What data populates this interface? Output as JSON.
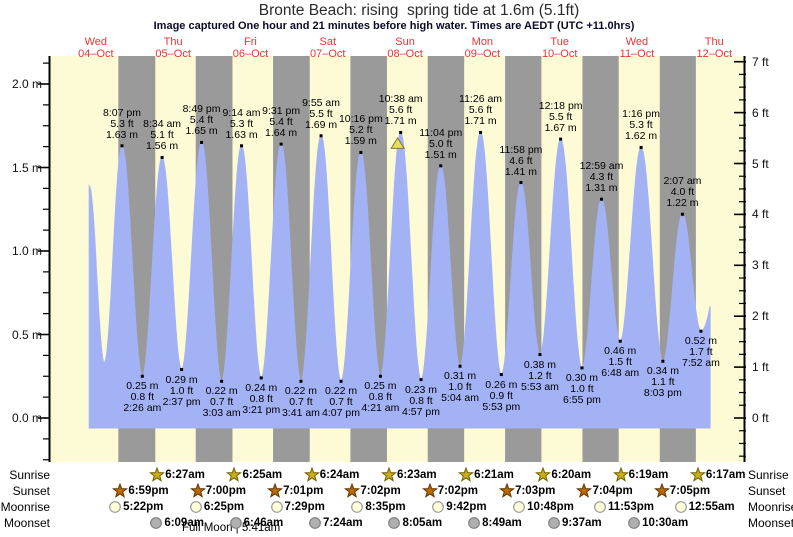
{
  "title": "Bronte Beach: rising  spring tide at 1.6m (5.1ft)",
  "subtitle": "Image captured One hour and 21 minutes before high water. Times are AEDT (UTC +11.0hrs)",
  "days": [
    {
      "name": "Wed",
      "date": "04–Oct",
      "noon_t": 12
    },
    {
      "name": "Thu",
      "date": "05–Oct",
      "noon_t": 36
    },
    {
      "name": "Fri",
      "date": "06–Oct",
      "noon_t": 60
    },
    {
      "name": "Sat",
      "date": "07–Oct",
      "noon_t": 84
    },
    {
      "name": "Sun",
      "date": "08–Oct",
      "noon_t": 108
    },
    {
      "name": "Mon",
      "date": "09–Oct",
      "noon_t": 132
    },
    {
      "name": "Tue",
      "date": "10–Oct",
      "noon_t": 156
    },
    {
      "name": "Wed",
      "date": "11–Oct",
      "noon_t": 180
    },
    {
      "name": "Thu",
      "date": "12–Oct",
      "noon_t": 204
    }
  ],
  "axes": {
    "left": {
      "labels": [
        "2.0 m",
        "1.5 m",
        "1.0 m",
        "0.5 m",
        "0.0 m"
      ],
      "values": [
        2.0,
        1.5,
        1.0,
        0.5,
        0.0
      ],
      "minor_step_m": 0.125
    },
    "right": {
      "labels": [
        "7 ft",
        "6 ft",
        "5 ft",
        "4 ft",
        "3 ft",
        "2 ft",
        "1 ft",
        "0 ft"
      ],
      "values": [
        7,
        6,
        5,
        4,
        3,
        2,
        1,
        0
      ],
      "minor_step_ft": 0.25
    }
  },
  "chart_data": {
    "type": "area",
    "x_unit": "hours_since_wed_04_oct_00:00",
    "y_unit": "m",
    "ylim": [
      0,
      2.16
    ],
    "highs": [
      {
        "time": "8:07 pm",
        "ft": "5.3 ft",
        "m": "1.63 m",
        "t": 20.12,
        "h": 1.63
      },
      {
        "time": "8:34 am",
        "ft": "5.1 ft",
        "m": "1.56 m",
        "t": 32.57,
        "h": 1.56
      },
      {
        "time": "8:49 pm",
        "ft": "5.4 ft",
        "m": "1.65 m",
        "t": 44.82,
        "h": 1.65
      },
      {
        "time": "9:14 am",
        "ft": "5.3 ft",
        "m": "1.63 m",
        "t": 57.23,
        "h": 1.63
      },
      {
        "time": "9:31 pm",
        "ft": "5.4 ft",
        "m": "1.64 m",
        "t": 69.52,
        "h": 1.64
      },
      {
        "time": "9:55 am",
        "ft": "5.5 ft",
        "m": "1.69 m",
        "t": 81.92,
        "h": 1.69
      },
      {
        "time": "10:16 pm",
        "ft": "5.2 ft",
        "m": "1.59 m",
        "t": 94.27,
        "h": 1.59
      },
      {
        "time": "10:38 am",
        "ft": "5.6 ft",
        "m": "1.71 m",
        "t": 106.63,
        "h": 1.71
      },
      {
        "time": "11:04 pm",
        "ft": "5.0 ft",
        "m": "1.51 m",
        "t": 119.07,
        "h": 1.51
      },
      {
        "time": "11:26 am",
        "ft": "5.6 ft",
        "m": "1.71 m",
        "t": 131.43,
        "h": 1.71
      },
      {
        "time": "11:58 pm",
        "ft": "4.6 ft",
        "m": "1.41 m",
        "t": 143.97,
        "h": 1.41
      },
      {
        "time": "12:18 pm",
        "ft": "5.5 ft",
        "m": "1.67 m",
        "t": 156.3,
        "h": 1.67
      },
      {
        "time": "12:59 am",
        "ft": "4.3 ft",
        "m": "1.31 m",
        "t": 168.98,
        "h": 1.31
      },
      {
        "time": "1:16 pm",
        "ft": "5.3 ft",
        "m": "1.62 m",
        "t": 181.27,
        "h": 1.62
      },
      {
        "time": "2:07 am",
        "ft": "4.0 ft",
        "m": "1.22 m",
        "t": 194.12,
        "h": 1.22
      }
    ],
    "lows": [
      {
        "m": "0.25 m",
        "ft": "0.8 ft",
        "time": "2:26 am",
        "t": 26.43,
        "h": 0.25
      },
      {
        "m": "0.29 m",
        "ft": "1.0 ft",
        "time": "2:37 pm",
        "t": 38.62,
        "h": 0.29
      },
      {
        "m": "0.22 m",
        "ft": "0.7 ft",
        "time": "3:03 am",
        "t": 51.05,
        "h": 0.22
      },
      {
        "m": "0.24 m",
        "ft": "0.8 ft",
        "time": "3:21 pm",
        "t": 63.35,
        "h": 0.24
      },
      {
        "m": "0.22 m",
        "ft": "0.7 ft",
        "time": "3:41 am",
        "t": 75.68,
        "h": 0.22
      },
      {
        "m": "0.22 m",
        "ft": "0.7 ft",
        "time": "4:07 pm",
        "t": 88.12,
        "h": 0.22
      },
      {
        "m": "0.25 m",
        "ft": "0.8 ft",
        "time": "4:21 am",
        "t": 100.35,
        "h": 0.25
      },
      {
        "m": "0.23 m",
        "ft": "0.8 ft",
        "time": "4:57 pm",
        "t": 112.95,
        "h": 0.23
      },
      {
        "m": "0.31 m",
        "ft": "1.0 ft",
        "time": "5:04 am",
        "t": 125.07,
        "h": 0.31
      },
      {
        "m": "0.26 m",
        "ft": "0.9 ft",
        "time": "5:53 pm",
        "t": 137.88,
        "h": 0.26
      },
      {
        "m": "0.38 m",
        "ft": "1.2 ft",
        "time": "5:53 am",
        "t": 149.88,
        "h": 0.38
      },
      {
        "m": "0.30 m",
        "ft": "1.0 ft",
        "time": "6:55 pm",
        "t": 162.92,
        "h": 0.3
      },
      {
        "m": "0.46 m",
        "ft": "1.5 ft",
        "time": "6:48 am",
        "t": 174.8,
        "h": 0.46
      },
      {
        "m": "0.34 m",
        "ft": "1.1 ft",
        "time": "8:03 pm",
        "t": 188.05,
        "h": 0.34
      },
      {
        "m": "0.52 m",
        "ft": "1.7 ft",
        "time": "7:52 am",
        "t": 199.87,
        "h": 0.52
      }
    ],
    "edge_extremes": [
      {
        "t": 9.95,
        "h": 1.39
      },
      {
        "t": 14.6,
        "h": 0.33
      },
      {
        "t": 211.0,
        "h": 1.5
      }
    ],
    "clip_t": [
      9.95,
      202.7
    ],
    "now_marker": {
      "t": 106.63,
      "h": 1.71
    },
    "night_bands": [
      [
        18.98,
        30.45
      ],
      [
        43.0,
        54.42
      ],
      [
        67.02,
        78.4
      ],
      [
        91.03,
        102.38
      ],
      [
        115.03,
        126.35
      ],
      [
        139.05,
        150.33
      ],
      [
        163.07,
        174.32
      ],
      [
        187.08,
        198.28
      ]
    ]
  },
  "astro": {
    "rows": [
      {
        "label": "Sunrise",
        "icon": "sunrise-star",
        "events": [
          {
            "time": "6:27am",
            "t": 30.45
          },
          {
            "time": "6:25am",
            "t": 54.42
          },
          {
            "time": "6:24am",
            "t": 78.4
          },
          {
            "time": "6:23am",
            "t": 102.38
          },
          {
            "time": "6:21am",
            "t": 126.35
          },
          {
            "time": "6:20am",
            "t": 150.33
          },
          {
            "time": "6:19am",
            "t": 174.32
          },
          {
            "time": "6:17am",
            "t": 198.28
          }
        ]
      },
      {
        "label": "Sunset",
        "icon": "sunset-star",
        "events": [
          {
            "time": "6:59pm",
            "t": 18.98
          },
          {
            "time": "7:00pm",
            "t": 43.0
          },
          {
            "time": "7:01pm",
            "t": 67.02
          },
          {
            "time": "7:02pm",
            "t": 91.03
          },
          {
            "time": "7:02pm",
            "t": 115.03
          },
          {
            "time": "7:03pm",
            "t": 139.05
          },
          {
            "time": "7:04pm",
            "t": 163.07
          },
          {
            "time": "7:05pm",
            "t": 187.08
          }
        ]
      },
      {
        "label": "Moonrise",
        "icon": "moonrise-circle",
        "events": [
          {
            "time": "5:22pm",
            "t": 17.37
          },
          {
            "time": "6:25pm",
            "t": 42.42
          },
          {
            "time": "7:29pm",
            "t": 67.48
          },
          {
            "time": "8:35pm",
            "t": 92.58
          },
          {
            "time": "9:42pm",
            "t": 117.7
          },
          {
            "time": "10:48pm",
            "t": 142.8
          },
          {
            "time": "11:53pm",
            "t": 167.88
          },
          {
            "time": "12:55am",
            "t": 192.92
          }
        ]
      },
      {
        "label": "Moonset",
        "icon": "moonset-circle",
        "events": [
          {
            "time": "6:09am",
            "t": 30.15
          },
          {
            "time": "6:46am",
            "t": 54.77
          },
          {
            "time": "7:24am",
            "t": 79.4
          },
          {
            "time": "8:05am",
            "t": 104.08
          },
          {
            "time": "8:49am",
            "t": 128.82
          },
          {
            "time": "9:37am",
            "t": 153.62
          },
          {
            "time": "10:30am",
            "t": 178.5
          }
        ]
      }
    ],
    "footnote": "Full Moon | 5:41am"
  },
  "colors": {
    "background": "#ffffff",
    "plot_day": "#fdfbd5",
    "plot_night": "#9a9a9a",
    "tide_fill": "#a3b2f5",
    "day_label": "#e83535",
    "title_text": "#2b2b2b",
    "subtitle_text": "#0a0a2a",
    "axis_text": "#111111",
    "axis_line": "#000000",
    "now_marker_fill": "#e8e05c",
    "now_marker_stroke": "#7d7d30",
    "sunrise_star_fill": "#c9ad1c",
    "sunrise_star_stroke": "#6f5f00",
    "sunset_star_fill": "#b96a00",
    "sunset_star_stroke": "#5f3300",
    "moonrise_fill": "#ffffd8",
    "moonrise_stroke": "#999999",
    "moonset_fill": "#b0b0b0",
    "moonset_stroke": "#808080"
  }
}
